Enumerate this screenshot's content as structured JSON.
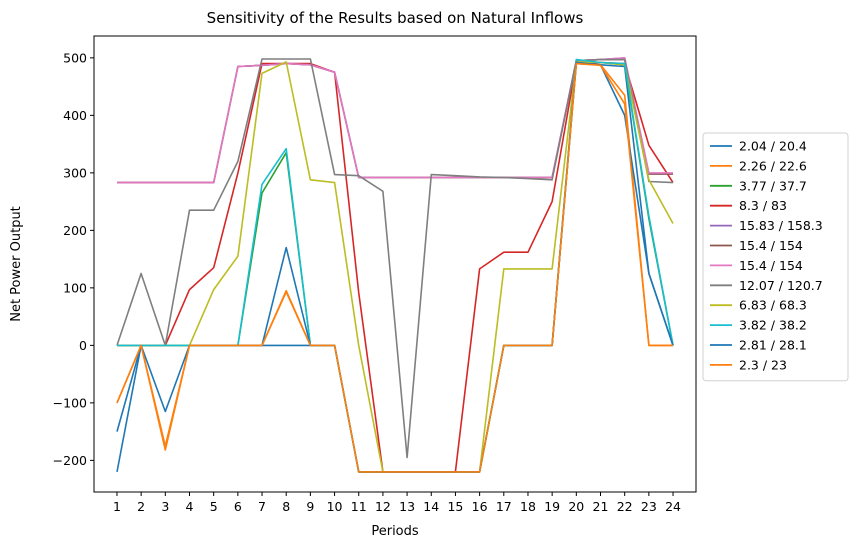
{
  "chart_data": {
    "type": "line",
    "title": "Sensitivity of the Results based on Natural Inflows",
    "xlabel": "Periods",
    "ylabel": "Net Power Output",
    "x": [
      1,
      2,
      3,
      4,
      5,
      6,
      7,
      8,
      9,
      10,
      11,
      12,
      13,
      14,
      15,
      16,
      17,
      18,
      19,
      20,
      21,
      22,
      23,
      24
    ],
    "x_tick_labels": [
      "1",
      "2",
      "3",
      "4",
      "5",
      "6",
      "7",
      "8",
      "9",
      "10",
      "11",
      "12",
      "13",
      "14",
      "15",
      "16",
      "17",
      "18",
      "19",
      "20",
      "21",
      "22",
      "23",
      "24"
    ],
    "ylim": [
      -255,
      538
    ],
    "yticks": [
      -200,
      -100,
      0,
      100,
      200,
      300,
      400,
      500
    ],
    "ytick_labels": [
      "−200",
      "−100",
      "0",
      "100",
      "200",
      "300",
      "400",
      "500"
    ],
    "legend_position": "right",
    "grid": false,
    "series": [
      {
        "name": "2.04 / 20.4",
        "color": "#1f77b4",
        "values": [
          -220,
          0,
          0,
          0,
          0,
          0,
          0,
          0,
          0,
          0,
          -220,
          -220,
          -220,
          -220,
          -220,
          -220,
          0,
          0,
          0,
          490,
          488,
          485,
          125,
          0
        ]
      },
      {
        "name": "2.26 / 22.6",
        "color": "#ff7f0e",
        "values": [
          -100,
          0,
          -175,
          0,
          0,
          0,
          0,
          95,
          0,
          0,
          -220,
          -220,
          -220,
          -220,
          -220,
          -220,
          0,
          0,
          0,
          490,
          488,
          435,
          0,
          0
        ]
      },
      {
        "name": "3.77 / 37.7",
        "color": "#2ca02c",
        "values": [
          0,
          0,
          0,
          0,
          0,
          0,
          265,
          335,
          0,
          0,
          -220,
          -220,
          -220,
          -220,
          -220,
          -220,
          0,
          0,
          0,
          495,
          492,
          488,
          220,
          0
        ]
      },
      {
        "name": "8.3 / 83",
        "color": "#d62728",
        "values": [
          0,
          0,
          0,
          97,
          135,
          300,
          490,
          490,
          490,
          475,
          92,
          -220,
          -220,
          -220,
          -220,
          133,
          162,
          162,
          250,
          490,
          492,
          490,
          348,
          283
        ]
      },
      {
        "name": "15.83 / 158.3",
        "color": "#9467bd",
        "values": [
          283,
          283,
          283,
          283,
          283,
          485,
          487,
          490,
          488,
          475,
          292,
          292,
          292,
          292,
          292,
          292,
          292,
          292,
          292,
          495,
          497,
          500,
          298,
          298
        ]
      },
      {
        "name": "15.4 / 154",
        "color": "#8c564b",
        "values": [
          283,
          283,
          283,
          283,
          283,
          485,
          487,
          490,
          488,
          475,
          292,
          292,
          292,
          292,
          292,
          292,
          292,
          292,
          292,
          495,
          497,
          497,
          298,
          298
        ]
      },
      {
        "name": "15.4 / 154",
        "color": "#e377c2",
        "values": [
          283,
          283,
          283,
          283,
          283,
          485,
          487,
          490,
          488,
          475,
          292,
          292,
          292,
          292,
          292,
          292,
          292,
          292,
          292,
          495,
          497,
          500,
          300,
          300
        ]
      },
      {
        "name": "12.07 / 120.7",
        "color": "#7f7f7f",
        "values": [
          0,
          125,
          0,
          235,
          235,
          320,
          498,
          498,
          498,
          297,
          295,
          268,
          -195,
          297,
          295,
          293,
          292,
          290,
          288,
          495,
          497,
          497,
          285,
          283
        ]
      },
      {
        "name": "6.83 / 68.3",
        "color": "#bcbd22",
        "values": [
          0,
          0,
          0,
          0,
          97,
          155,
          473,
          493,
          288,
          283,
          0,
          -220,
          -220,
          -220,
          -220,
          -220,
          133,
          133,
          133,
          493,
          492,
          488,
          288,
          212
        ]
      },
      {
        "name": "3.82 / 38.2",
        "color": "#17becf",
        "values": [
          0,
          0,
          0,
          0,
          0,
          0,
          280,
          342,
          0,
          0,
          -220,
          -220,
          -220,
          -220,
          -220,
          -220,
          0,
          0,
          0,
          497,
          492,
          490,
          225,
          0
        ]
      },
      {
        "name": "2.81 / 28.1",
        "color": "#1f77b4",
        "values": [
          -150,
          0,
          -115,
          0,
          0,
          0,
          0,
          170,
          0,
          0,
          -220,
          -220,
          -220,
          -220,
          -220,
          -220,
          0,
          0,
          0,
          492,
          488,
          400,
          125,
          0
        ]
      },
      {
        "name": "2.3 / 23",
        "color": "#ff7f0e",
        "values": [
          -100,
          0,
          -182,
          0,
          0,
          0,
          0,
          93,
          0,
          0,
          -220,
          -220,
          -220,
          -220,
          -220,
          -220,
          0,
          0,
          0,
          490,
          487,
          420,
          0,
          0
        ]
      }
    ]
  }
}
